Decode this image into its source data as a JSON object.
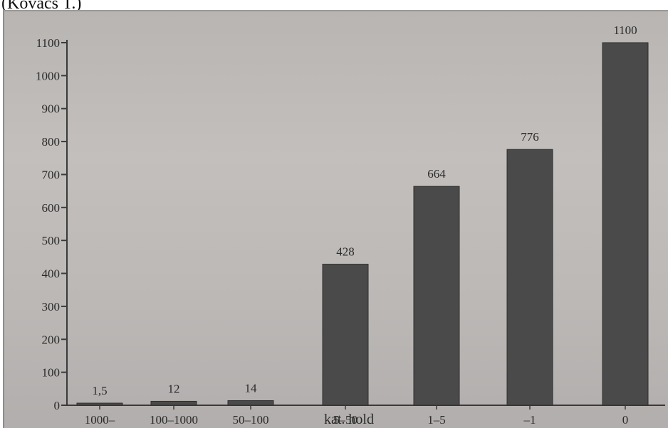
{
  "caption": "(Kovács T.)",
  "chart_data": {
    "type": "bar",
    "categories": [
      "1000–",
      "100–1000",
      "50–100",
      "5–50",
      "1–5",
      "–1",
      "0"
    ],
    "values": [
      1.5,
      12,
      14,
      428,
      664,
      776,
      1100
    ],
    "value_labels": [
      "1,5",
      "12",
      "14",
      "428",
      "664",
      "776",
      "1100"
    ],
    "title": "",
    "xlabel": "kat. hold",
    "ylabel": "",
    "ylim": [
      0,
      1100
    ],
    "yticks": [
      0,
      100,
      200,
      300,
      400,
      500,
      600,
      700,
      800,
      900,
      1000,
      1100
    ],
    "bar_color": "#4a4a4a",
    "grid": false,
    "legend": "none"
  }
}
